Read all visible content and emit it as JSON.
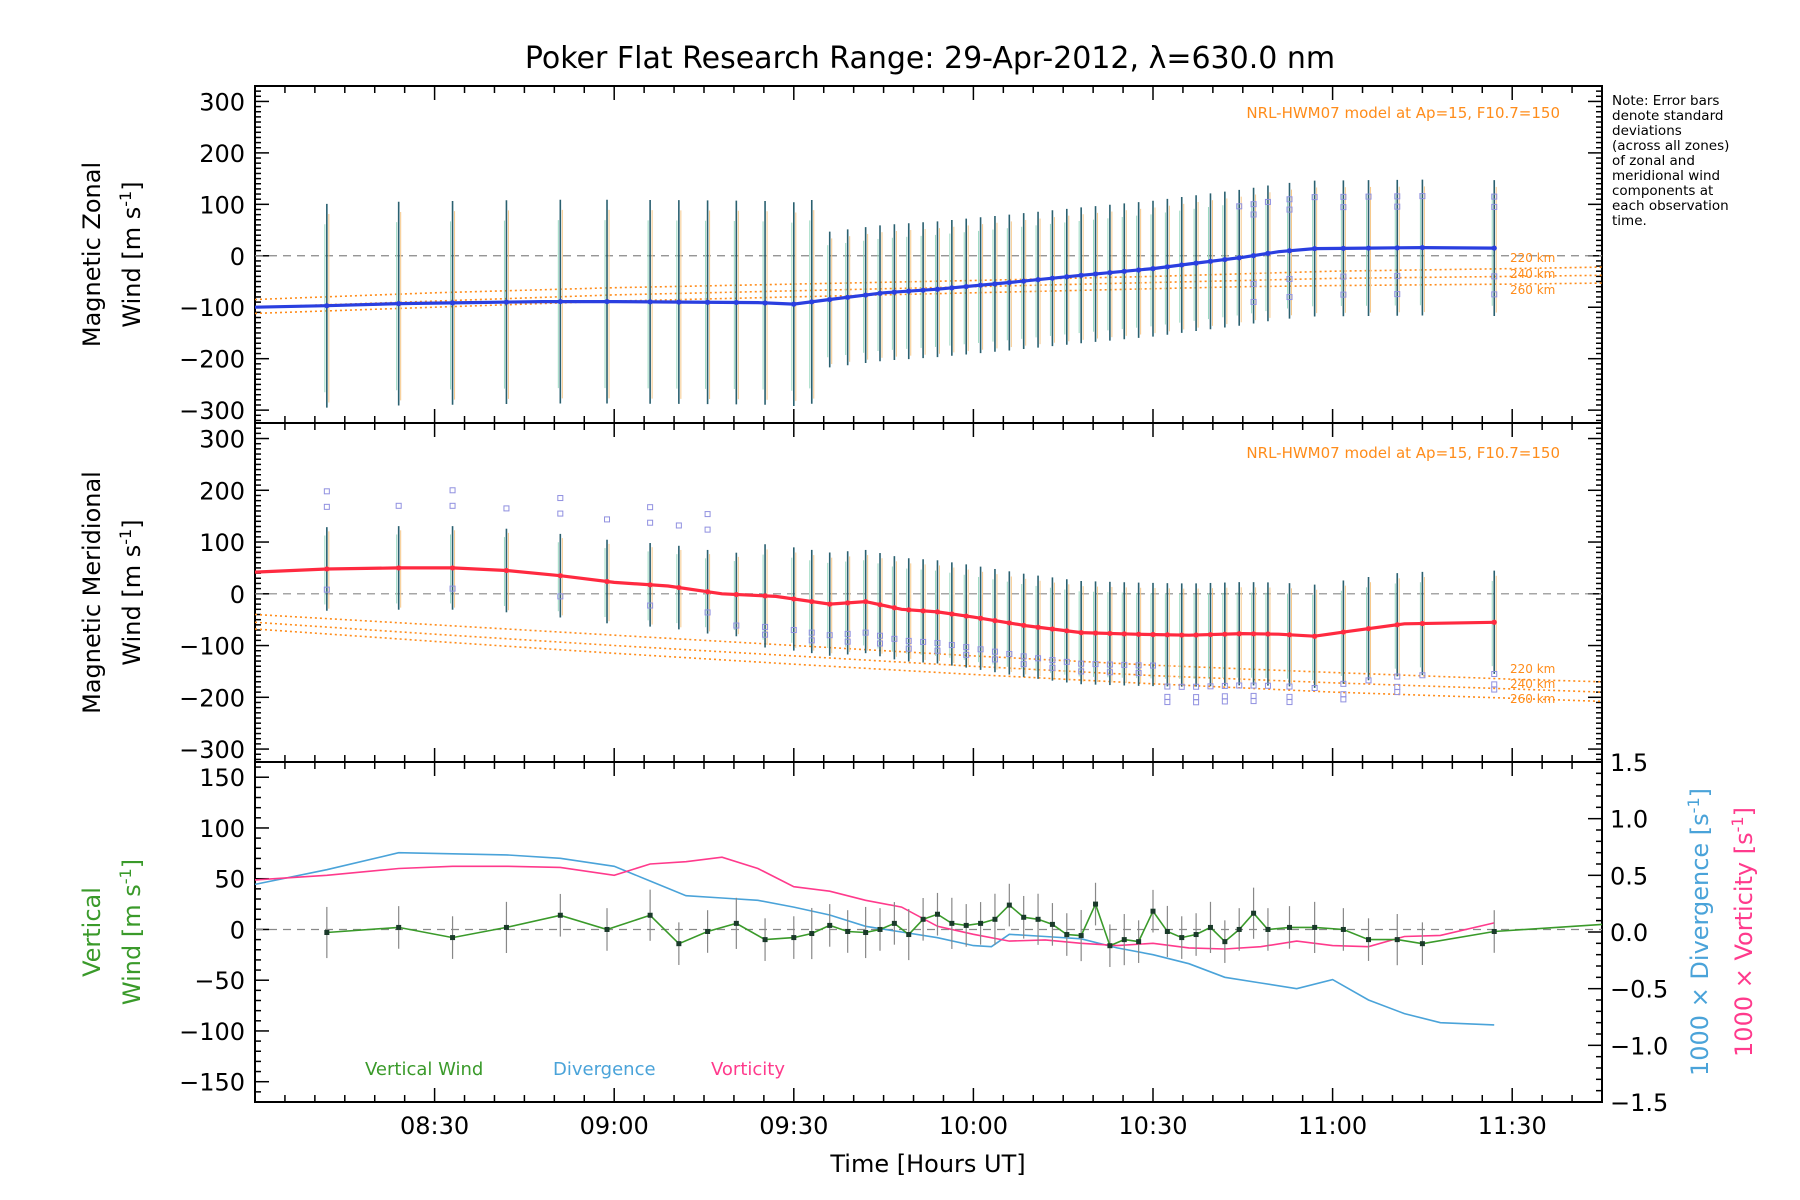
{
  "title": "Poker Flat Research Range: 29-Apr-2012, λ=630.0 nm",
  "note_lines": [
    "Note: Error bars",
    "denote standard",
    "deviations",
    "(across all zones)",
    "of zonal and",
    "meridional wind",
    "components at",
    "each observation",
    "time."
  ],
  "colors": {
    "zonal": "#2a3fe0",
    "meridional": "#ff2a40",
    "model": "#ff8c1a",
    "vertical": "#3a9a2a",
    "divergence": "#4aa3d9",
    "vorticity": "#ff3a8c",
    "errorbar": "#2a6070",
    "scatter": "#9090e0"
  },
  "xaxis": {
    "label": "Time [Hours UT]",
    "ticks": [
      "08:30",
      "09:00",
      "09:30",
      "10:00",
      "10:30",
      "11:00",
      "11:30"
    ],
    "tick_hours": [
      8.5,
      9.0,
      9.5,
      10.0,
      10.5,
      11.0,
      11.5
    ],
    "range": [
      8.0,
      11.75
    ]
  },
  "chart_data": [
    {
      "type": "line",
      "panel": "zonal",
      "ylabel_line1": "Magnetic Zonal",
      "ylabel_line2": "Wind [m s",
      "ylabel_sup": "-1",
      "ylabel_close": "]",
      "ylim": [
        -325,
        330
      ],
      "yticks": [
        300,
        200,
        100,
        0,
        -100,
        -200,
        -300
      ],
      "model_label": "NRL-HWM07 model at Ap=15, F10.7=150",
      "model_series": [
        {
          "name": "220 km",
          "x": [
            8.0,
            8.5,
            9.0,
            9.5,
            10.0,
            10.5,
            10.75,
            11.0,
            11.5,
            11.75
          ],
          "y": [
            -85,
            -72,
            -62,
            -55,
            -48,
            -40,
            -35,
            -30,
            -25,
            -22
          ]
        },
        {
          "name": "240 km",
          "x": [
            8.0,
            8.5,
            9.0,
            9.5,
            10.0,
            10.5,
            10.75,
            11.0,
            11.5,
            11.75
          ],
          "y": [
            -100,
            -88,
            -76,
            -68,
            -60,
            -52,
            -48,
            -44,
            -40,
            -38
          ]
        },
        {
          "name": "260 km",
          "x": [
            8.0,
            8.5,
            9.0,
            9.5,
            10.0,
            10.5,
            10.75,
            11.0,
            11.5,
            11.75
          ],
          "y": [
            -112,
            -100,
            -88,
            -80,
            -72,
            -64,
            -60,
            -58,
            -55,
            -53
          ]
        }
      ],
      "series": [
        {
          "x": [
            8.0,
            8.2,
            8.4,
            8.6,
            8.8,
            9.0,
            9.2,
            9.4,
            9.5,
            9.6,
            9.75,
            9.9,
            10.1,
            10.3,
            10.5,
            10.6,
            10.75,
            10.85,
            10.95,
            11.1,
            11.25,
            11.45
          ],
          "y": [
            -100,
            -97,
            -93,
            -91,
            -89,
            -89,
            -90,
            -91,
            -94,
            -85,
            -72,
            -65,
            -52,
            -38,
            -25,
            -16,
            -3,
            8,
            14,
            15,
            16,
            15
          ]
        }
      ],
      "obs_times": [
        8.2,
        8.4,
        8.55,
        8.7,
        8.85,
        8.98,
        9.1,
        9.18,
        9.26,
        9.34,
        9.42,
        9.5,
        9.55,
        9.6,
        9.65,
        9.7,
        9.74,
        9.78,
        9.82,
        9.86,
        9.9,
        9.94,
        9.98,
        10.02,
        10.06,
        10.1,
        10.14,
        10.18,
        10.22,
        10.26,
        10.3,
        10.34,
        10.38,
        10.42,
        10.46,
        10.5,
        10.54,
        10.58,
        10.62,
        10.66,
        10.7,
        10.74,
        10.78,
        10.82,
        10.88,
        10.95,
        11.03,
        11.1,
        11.18,
        11.25,
        11.45
      ],
      "error_half": 165
    },
    {
      "type": "line",
      "panel": "meridional",
      "ylabel_line1": "Magnetic Meridional",
      "ylabel_line2": "Wind [m s",
      "ylabel_sup": "-1",
      "ylabel_close": "]",
      "ylim": [
        -325,
        330
      ],
      "yticks": [
        300,
        200,
        100,
        0,
        -100,
        -200,
        -300
      ],
      "model_label": "NRL-HWM07 model at Ap=15, F10.7=150",
      "model_series": [
        {
          "name": "220 km",
          "x": [
            8.0,
            8.5,
            9.0,
            9.5,
            10.0,
            10.5,
            11.0,
            11.5,
            11.75
          ],
          "y": [
            -40,
            -60,
            -80,
            -100,
            -120,
            -138,
            -152,
            -165,
            -170
          ]
        },
        {
          "name": "240 km",
          "x": [
            8.0,
            8.5,
            9.0,
            9.5,
            10.0,
            10.5,
            11.0,
            11.5,
            11.75
          ],
          "y": [
            -55,
            -78,
            -100,
            -120,
            -140,
            -158,
            -172,
            -184,
            -190
          ]
        },
        {
          "name": "260 km",
          "x": [
            8.0,
            8.5,
            9.0,
            9.5,
            10.0,
            10.5,
            11.0,
            11.5,
            11.75
          ],
          "y": [
            -68,
            -92,
            -115,
            -136,
            -156,
            -174,
            -190,
            -202,
            -208
          ]
        }
      ],
      "series": [
        {
          "x": [
            8.0,
            8.2,
            8.4,
            8.55,
            8.7,
            8.85,
            9.0,
            9.15,
            9.3,
            9.45,
            9.6,
            9.7,
            9.8,
            9.9,
            10.0,
            10.15,
            10.3,
            10.45,
            10.6,
            10.75,
            10.85,
            10.95,
            11.05,
            11.2,
            11.45
          ],
          "y": [
            42,
            48,
            50,
            50,
            45,
            35,
            22,
            15,
            0,
            -5,
            -20,
            -15,
            -30,
            -35,
            -45,
            -62,
            -75,
            -78,
            -80,
            -77,
            -78,
            -82,
            -72,
            -58,
            -55
          ]
        }
      ],
      "obs_times": [
        8.2,
        8.4,
        8.55,
        8.7,
        8.85,
        8.98,
        9.1,
        9.18,
        9.26,
        9.34,
        9.42,
        9.5,
        9.55,
        9.6,
        9.65,
        9.7,
        9.74,
        9.78,
        9.82,
        9.86,
        9.9,
        9.94,
        9.98,
        10.02,
        10.06,
        10.1,
        10.14,
        10.18,
        10.22,
        10.26,
        10.3,
        10.34,
        10.38,
        10.42,
        10.46,
        10.5,
        10.54,
        10.58,
        10.62,
        10.66,
        10.7,
        10.74,
        10.78,
        10.82,
        10.88,
        10.95,
        11.03,
        11.1,
        11.18,
        11.25,
        11.45
      ],
      "error_half": 95
    },
    {
      "type": "line",
      "panel": "vertical",
      "ylabel_line1": "Vertical",
      "ylabel_line2": "Wind [m s",
      "ylabel_sup": "-1",
      "ylabel_close": "]",
      "ylim": [
        -170,
        165
      ],
      "yticks": [
        150,
        100,
        50,
        0,
        -50,
        -100,
        -150
      ],
      "y2label_div": "1000 × Divergence [s",
      "y2label_vort": "1000 × Vorticity [s",
      "y2label_sup": "-1",
      "y2label_close": "]",
      "y2lim": [
        -1.5,
        1.5
      ],
      "y2ticks": [
        1.5,
        1.0,
        0.5,
        0.0,
        -0.5,
        -1.0,
        -1.5
      ],
      "legend": [
        "Vertical Wind",
        "Divergence",
        "Vorticity"
      ],
      "series": [
        {
          "name": "Vertical Wind",
          "axis": "left",
          "x": [
            8.2,
            8.4,
            8.55,
            8.7,
            8.85,
            8.98,
            9.1,
            9.18,
            9.26,
            9.34,
            9.42,
            9.5,
            9.55,
            9.6,
            9.65,
            9.7,
            9.74,
            9.78,
            9.82,
            9.86,
            9.9,
            9.94,
            9.98,
            10.02,
            10.06,
            10.1,
            10.14,
            10.18,
            10.22,
            10.26,
            10.3,
            10.34,
            10.38,
            10.42,
            10.46,
            10.5,
            10.54,
            10.58,
            10.62,
            10.66,
            10.7,
            10.74,
            10.78,
            10.82,
            10.88,
            10.95,
            11.03,
            11.1,
            11.18,
            11.25,
            11.45,
            11.75
          ],
          "y": [
            -3,
            2,
            -8,
            2,
            14,
            0,
            14,
            -14,
            -2,
            6,
            -10,
            -8,
            -4,
            4,
            -2,
            -3,
            0,
            6,
            -5,
            10,
            15,
            6,
            4,
            6,
            10,
            24,
            12,
            10,
            5,
            -5,
            -6,
            25,
            -16,
            -10,
            -12,
            18,
            -2,
            -8,
            -5,
            2,
            -12,
            0,
            16,
            0,
            2,
            2,
            0,
            -10,
            -10,
            -14,
            -2,
            5
          ]
        },
        {
          "name": "Divergence",
          "axis": "right",
          "x": [
            8.0,
            8.2,
            8.4,
            8.55,
            8.7,
            8.85,
            9.0,
            9.1,
            9.2,
            9.3,
            9.4,
            9.5,
            9.6,
            9.7,
            9.8,
            9.9,
            10.0,
            10.05,
            10.1,
            10.2,
            10.3,
            10.4,
            10.5,
            10.6,
            10.7,
            10.8,
            10.9,
            11.0,
            11.1,
            11.2,
            11.3,
            11.45
          ],
          "y": [
            0.42,
            0.55,
            0.7,
            0.69,
            0.68,
            0.65,
            0.58,
            0.45,
            0.32,
            0.3,
            0.28,
            0.22,
            0.15,
            0.05,
            0.0,
            -0.05,
            -0.12,
            -0.13,
            -0.02,
            -0.04,
            -0.06,
            -0.14,
            -0.2,
            -0.28,
            -0.4,
            -0.45,
            -0.5,
            -0.42,
            -0.6,
            -0.72,
            -0.8,
            -0.82
          ]
        },
        {
          "name": "Vorticity",
          "axis": "right",
          "x": [
            8.0,
            8.2,
            8.4,
            8.55,
            8.7,
            8.85,
            9.0,
            9.1,
            9.2,
            9.3,
            9.4,
            9.5,
            9.6,
            9.7,
            9.8,
            9.9,
            10.0,
            10.1,
            10.2,
            10.3,
            10.4,
            10.5,
            10.6,
            10.7,
            10.8,
            10.9,
            11.0,
            11.1,
            11.2,
            11.3,
            11.45
          ],
          "y": [
            0.46,
            0.5,
            0.56,
            0.58,
            0.58,
            0.57,
            0.5,
            0.6,
            0.62,
            0.66,
            0.56,
            0.4,
            0.36,
            0.28,
            0.22,
            0.05,
            -0.02,
            -0.08,
            -0.07,
            -0.1,
            -0.12,
            -0.1,
            -0.14,
            -0.15,
            -0.13,
            -0.08,
            -0.12,
            -0.13,
            -0.04,
            -0.03,
            0.08
          ]
        }
      ],
      "error_half": 28
    }
  ]
}
